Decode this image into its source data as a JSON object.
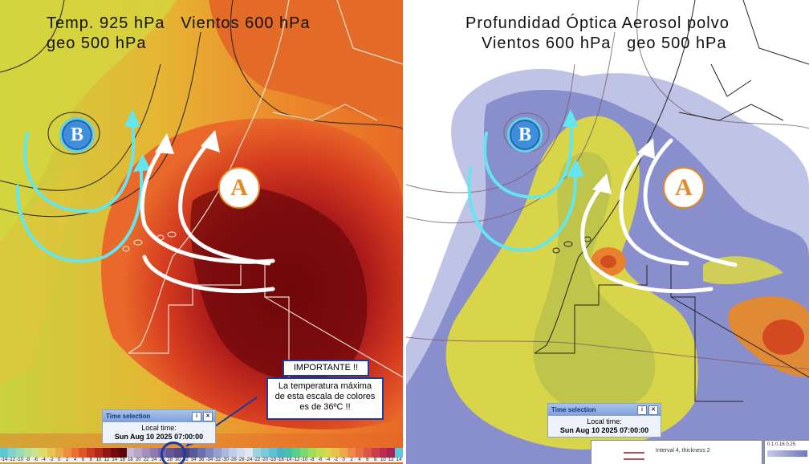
{
  "left_panel": {
    "title_line1": "Temp. 925 hPa   Vientos 600 hPa",
    "title_line2": "geo 500 hPa",
    "low_label": "B",
    "high_label": "A",
    "important_title": "IMPORTANTE !!",
    "important_text_1": "La temperatura máxima",
    "important_text_2": "de esta escala de colores",
    "important_text_3": "es de 36ºC !!",
    "time_selection": {
      "header": "Time selection",
      "local_time_label": "Local time:",
      "datetime": "Sun Aug 10 2025 07:00:00"
    },
    "colorbar_labels": [
      "-14",
      "-12",
      "-10",
      "-8",
      "-6",
      "-4",
      "-2",
      "0",
      "2",
      "4",
      "6",
      "8",
      "10",
      "12",
      "14",
      "16",
      "18",
      "20",
      "22",
      "24",
      "26",
      "28",
      "30",
      "32",
      "34",
      "36",
      "-34",
      "-32",
      "-30",
      "-28",
      "-26",
      "-24",
      "-22",
      "-20",
      "-18",
      "-16",
      "-14",
      "-12",
      "-10",
      "-8",
      "-6",
      "-4",
      "-2",
      "0",
      "2",
      "4",
      "6",
      "8",
      "10",
      "12",
      "14"
    ]
  },
  "right_panel": {
    "title_line1": "Profundidad Óptica Aerosol polvo",
    "title_line2": "Vientos 600 hPa   geo 500 hPa",
    "low_label": "B",
    "high_label": "A",
    "time_selection": {
      "header": "Time selection",
      "local_time_label": "Local time:",
      "datetime": "Sun Aug 10 2025 07:00:00"
    },
    "legend_text": "Interval 4, thickness 2",
    "legend_scale": "0.1  0.16  0.25"
  },
  "colors": {
    "temp_hot": "#8a0f10",
    "temp_warm": "#e0581d",
    "temp_mild": "#d9c93a",
    "dust_high": "#e7722a",
    "dust_mid": "#d7d64a",
    "dust_low": "#7f86c7",
    "clear": "#ffffff",
    "arrow_cyan": "#63e6f0",
    "arrow_white": "#ffffff",
    "high_marker": "#e58a22",
    "low_marker": "#2f7ad6"
  },
  "icons": [
    "close-icon",
    "info-icon"
  ]
}
